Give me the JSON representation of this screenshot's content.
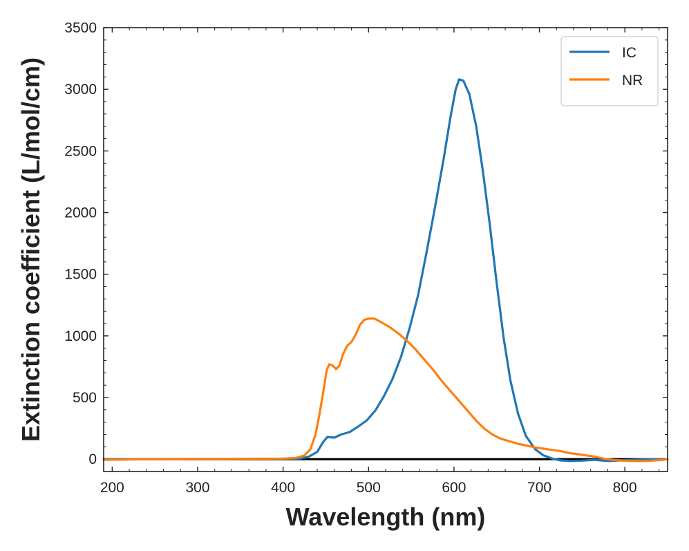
{
  "chart_data": {
    "type": "line",
    "title": "",
    "xlabel": "Wavelength (nm)",
    "ylabel": "Extinction coefficient (L/mol/cm)",
    "xlim": [
      190,
      850
    ],
    "ylim": [
      -100,
      3500
    ],
    "xticks": [
      200,
      300,
      400,
      500,
      600,
      700,
      800
    ],
    "yticks": [
      0,
      500,
      1000,
      1500,
      2000,
      2500,
      3000,
      3500
    ],
    "x_minor_step": 20,
    "y_minor_step": 100,
    "baseline": {
      "y": 0,
      "x_from": 190,
      "x_to": 850,
      "color": "#000000"
    },
    "legend": {
      "position": "top-right"
    },
    "series": [
      {
        "name": "IC",
        "color": "#1f77b4",
        "points": [
          [
            190,
            0
          ],
          [
            300,
            2
          ],
          [
            400,
            3
          ],
          [
            420,
            5
          ],
          [
            430,
            20
          ],
          [
            440,
            60
          ],
          [
            447,
            140
          ],
          [
            452,
            180
          ],
          [
            460,
            175
          ],
          [
            468,
            200
          ],
          [
            478,
            220
          ],
          [
            488,
            265
          ],
          [
            498,
            315
          ],
          [
            508,
            395
          ],
          [
            518,
            510
          ],
          [
            528,
            650
          ],
          [
            538,
            830
          ],
          [
            548,
            1060
          ],
          [
            558,
            1330
          ],
          [
            568,
            1680
          ],
          [
            578,
            2050
          ],
          [
            588,
            2440
          ],
          [
            596,
            2780
          ],
          [
            602,
            3000
          ],
          [
            606,
            3080
          ],
          [
            611,
            3070
          ],
          [
            618,
            2960
          ],
          [
            626,
            2700
          ],
          [
            634,
            2330
          ],
          [
            642,
            1900
          ],
          [
            650,
            1430
          ],
          [
            658,
            990
          ],
          [
            666,
            640
          ],
          [
            675,
            370
          ],
          [
            684,
            190
          ],
          [
            695,
            80
          ],
          [
            705,
            30
          ],
          [
            715,
            5
          ],
          [
            725,
            -10
          ],
          [
            735,
            -15
          ],
          [
            750,
            -12
          ],
          [
            765,
            -5
          ],
          [
            780,
            -15
          ],
          [
            795,
            -10
          ],
          [
            810,
            -5
          ],
          [
            830,
            0
          ],
          [
            850,
            0
          ]
        ]
      },
      {
        "name": "NR",
        "color": "#ff7f0e",
        "points": [
          [
            190,
            -5
          ],
          [
            250,
            0
          ],
          [
            300,
            2
          ],
          [
            350,
            3
          ],
          [
            400,
            5
          ],
          [
            415,
            10
          ],
          [
            425,
            30
          ],
          [
            432,
            80
          ],
          [
            438,
            200
          ],
          [
            443,
            380
          ],
          [
            448,
            590
          ],
          [
            451,
            720
          ],
          [
            454,
            770
          ],
          [
            458,
            760
          ],
          [
            462,
            730
          ],
          [
            466,
            760
          ],
          [
            470,
            850
          ],
          [
            475,
            920
          ],
          [
            480,
            950
          ],
          [
            485,
            1010
          ],
          [
            490,
            1090
          ],
          [
            495,
            1130
          ],
          [
            500,
            1140
          ],
          [
            507,
            1140
          ],
          [
            515,
            1110
          ],
          [
            525,
            1070
          ],
          [
            535,
            1020
          ],
          [
            545,
            960
          ],
          [
            555,
            890
          ],
          [
            565,
            810
          ],
          [
            575,
            730
          ],
          [
            585,
            640
          ],
          [
            595,
            560
          ],
          [
            605,
            480
          ],
          [
            615,
            400
          ],
          [
            625,
            320
          ],
          [
            635,
            250
          ],
          [
            645,
            200
          ],
          [
            655,
            165
          ],
          [
            665,
            145
          ],
          [
            675,
            125
          ],
          [
            685,
            110
          ],
          [
            695,
            95
          ],
          [
            705,
            85
          ],
          [
            715,
            75
          ],
          [
            725,
            65
          ],
          [
            735,
            50
          ],
          [
            745,
            40
          ],
          [
            755,
            30
          ],
          [
            765,
            20
          ],
          [
            775,
            5
          ],
          [
            785,
            -5
          ],
          [
            795,
            -10
          ],
          [
            805,
            -15
          ],
          [
            815,
            -15
          ],
          [
            825,
            -15
          ],
          [
            835,
            -10
          ],
          [
            845,
            -5
          ],
          [
            850,
            0
          ]
        ]
      }
    ]
  }
}
